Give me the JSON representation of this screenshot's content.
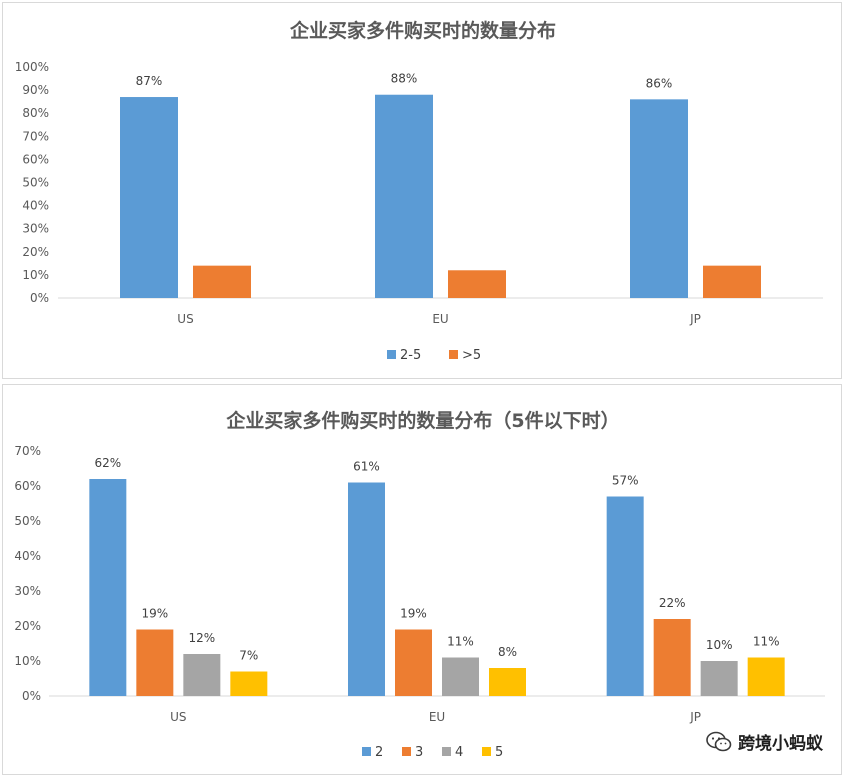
{
  "chart_data": [
    {
      "type": "bar",
      "title": "企业买家多件购买时的数量分布",
      "categories": [
        "US",
        "EU",
        "JP"
      ],
      "series": [
        {
          "name": "2-5",
          "values": [
            87,
            88,
            86
          ],
          "labels": [
            "87%",
            "88%",
            "86%"
          ],
          "color": "#5b9bd5"
        },
        {
          "name": ">5",
          "values": [
            14,
            12,
            14
          ],
          "color": "#ed7d31"
        }
      ],
      "ylim": [
        0,
        100
      ],
      "yticks": [
        0,
        10,
        20,
        30,
        40,
        50,
        60,
        70,
        80,
        90,
        100
      ],
      "ytick_labels": [
        "0%",
        "10%",
        "20%",
        "30%",
        "40%",
        "50%",
        "60%",
        "70%",
        "80%",
        "90%",
        "100%"
      ],
      "grid": false,
      "legend": "bottom"
    },
    {
      "type": "bar",
      "title": "企业买家多件购买时的数量分布（5件以下时）",
      "categories": [
        "US",
        "EU",
        "JP"
      ],
      "series": [
        {
          "name": "2",
          "values": [
            62,
            61,
            57
          ],
          "labels": [
            "62%",
            "61%",
            "57%"
          ],
          "color": "#5b9bd5"
        },
        {
          "name": "3",
          "values": [
            19,
            19,
            22
          ],
          "labels": [
            "19%",
            "19%",
            "22%"
          ],
          "color": "#ed7d31"
        },
        {
          "name": "4",
          "values": [
            12,
            11,
            10
          ],
          "labels": [
            "12%",
            "11%",
            "10%"
          ],
          "color": "#a5a5a5"
        },
        {
          "name": "5",
          "values": [
            7,
            8,
            11
          ],
          "labels": [
            "7%",
            "8%",
            "11%"
          ],
          "color": "#ffc000"
        }
      ],
      "ylim": [
        0,
        70
      ],
      "yticks": [
        0,
        10,
        20,
        30,
        40,
        50,
        60,
        70
      ],
      "ytick_labels": [
        "0%",
        "10%",
        "20%",
        "30%",
        "40%",
        "50%",
        "60%",
        "70%"
      ],
      "grid": false,
      "legend": "bottom"
    }
  ],
  "watermark": {
    "text": "跨境小蚂蚁",
    "icon": "wechat-icon"
  }
}
